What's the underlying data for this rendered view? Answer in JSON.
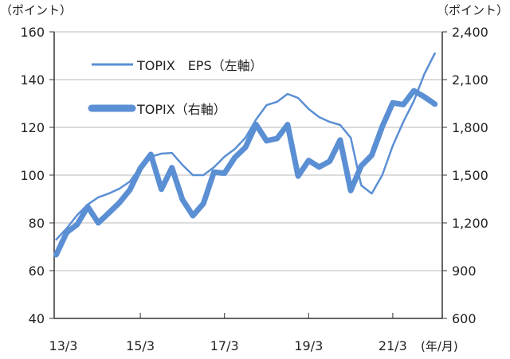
{
  "chart_data": {
    "type": "line",
    "left_axis_unit": "（ポイント）",
    "right_axis_unit": "（ポイント）",
    "x_unit": "(年/月)",
    "x_tick_labels": [
      "13/3",
      "15/3",
      "17/3",
      "19/3",
      "21/3"
    ],
    "left_ylim": [
      40,
      160
    ],
    "left_ticks": [
      "40",
      "60",
      "80",
      "100",
      "120",
      "140",
      "160"
    ],
    "right_ylim": [
      600,
      2400
    ],
    "right_ticks": [
      "600",
      "900",
      "1,200",
      "1,500",
      "1,800",
      "2,100",
      "2,400"
    ],
    "grid": "horizontal",
    "legend_position": "top-left",
    "color": "#5B8FD4",
    "x": [
      "13/3",
      "13/6",
      "13/9",
      "13/12",
      "14/3",
      "14/6",
      "14/9",
      "14/12",
      "15/3",
      "15/6",
      "15/9",
      "15/12",
      "16/3",
      "16/6",
      "16/9",
      "16/12",
      "17/3",
      "17/6",
      "17/9",
      "17/12",
      "18/3",
      "18/6",
      "18/9",
      "18/12",
      "19/3",
      "19/6",
      "19/9",
      "19/12",
      "20/3",
      "20/6",
      "20/9",
      "20/12",
      "21/3",
      "21/6",
      "21/9",
      "21/12",
      "22/3"
    ],
    "series": [
      {
        "name": "TOPIX　EPS（左軸）",
        "axis": "left",
        "values": [
          73,
          77.7,
          83.3,
          87.7,
          90.7,
          92.3,
          94.3,
          97.3,
          103.3,
          107.7,
          109,
          109.3,
          104.3,
          100,
          100,
          103.3,
          107.7,
          111,
          115.7,
          123.3,
          129.3,
          130.7,
          134,
          132.3,
          127.7,
          124.3,
          122.3,
          121,
          115.7,
          95.7,
          92.3,
          100,
          112.3,
          122.3,
          131,
          142.3,
          151
        ]
      },
      {
        "name": "TOPIX（右軸）",
        "axis": "right",
        "values": [
          1000,
          1140,
          1190,
          1302,
          1200,
          1262,
          1326,
          1407,
          1543,
          1630,
          1411,
          1547,
          1347,
          1245,
          1322,
          1519,
          1512,
          1612,
          1675,
          1818,
          1716,
          1730,
          1817,
          1494,
          1592,
          1551,
          1587,
          1721,
          1403,
          1558,
          1625,
          1805,
          1954,
          1943,
          2030,
          1992,
          1946
        ]
      }
    ]
  }
}
